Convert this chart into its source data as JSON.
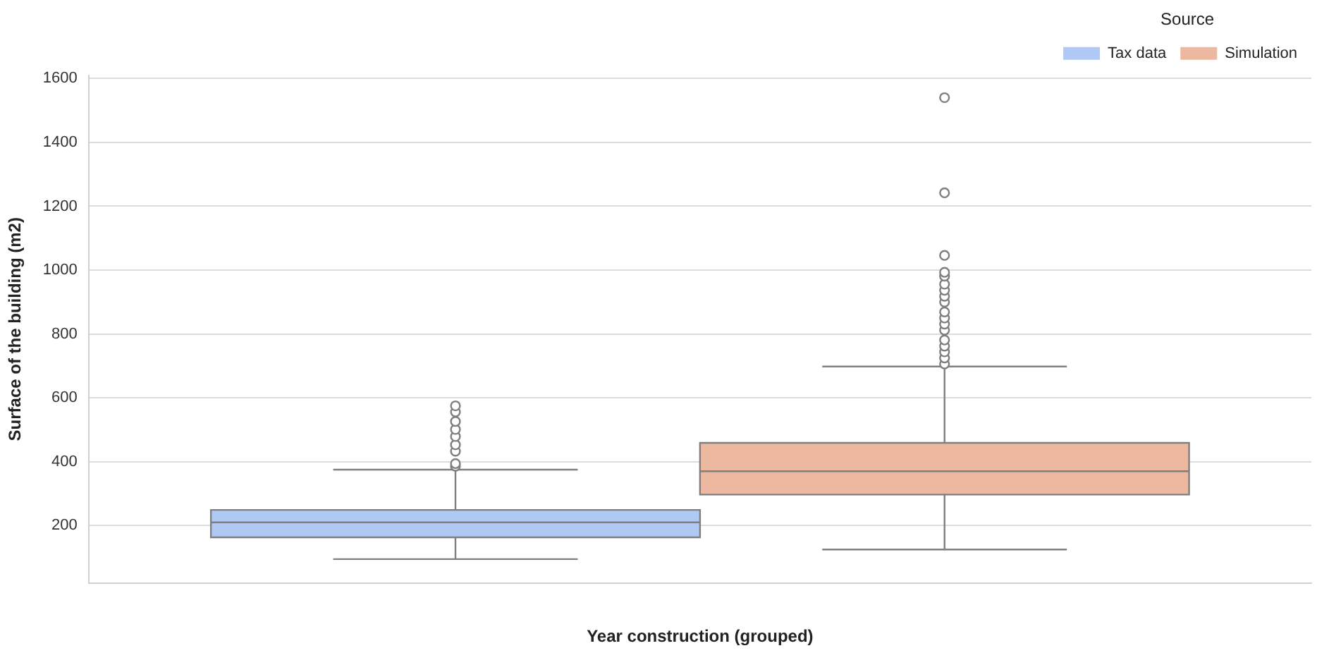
{
  "chart_data": {
    "type": "box",
    "xlabel": "Year construction (grouped)",
    "ylabel": "Surface of the building (m2)",
    "legend_title": "Source",
    "legend": "top right",
    "grid": "y",
    "ylim": [
      20,
      1610
    ],
    "yticks": [
      200,
      400,
      600,
      800,
      1000,
      1200,
      1400,
      1600
    ],
    "categories": [
      null
    ],
    "series": [
      {
        "name": "Tax data",
        "color": "#b0c8f4",
        "boxes": [
          {
            "low": 95,
            "q1": 163,
            "median": 210,
            "q3": 249,
            "high": 375,
            "outliers": [
              386,
              394,
              433,
              453,
              479,
              501,
              526,
              556,
              575
            ]
          }
        ]
      },
      {
        "name": "Simulation",
        "color": "#ecb9a0",
        "boxes": [
          {
            "low": 125,
            "q1": 297,
            "median": 370,
            "q3": 459,
            "high": 698,
            "outliers": [
              706,
              725,
              744,
              762,
              781,
              812,
              831,
              850,
              869,
              900,
              918,
              937,
              956,
              981,
              993,
              1046,
              1242,
              1540
            ]
          }
        ]
      }
    ]
  }
}
